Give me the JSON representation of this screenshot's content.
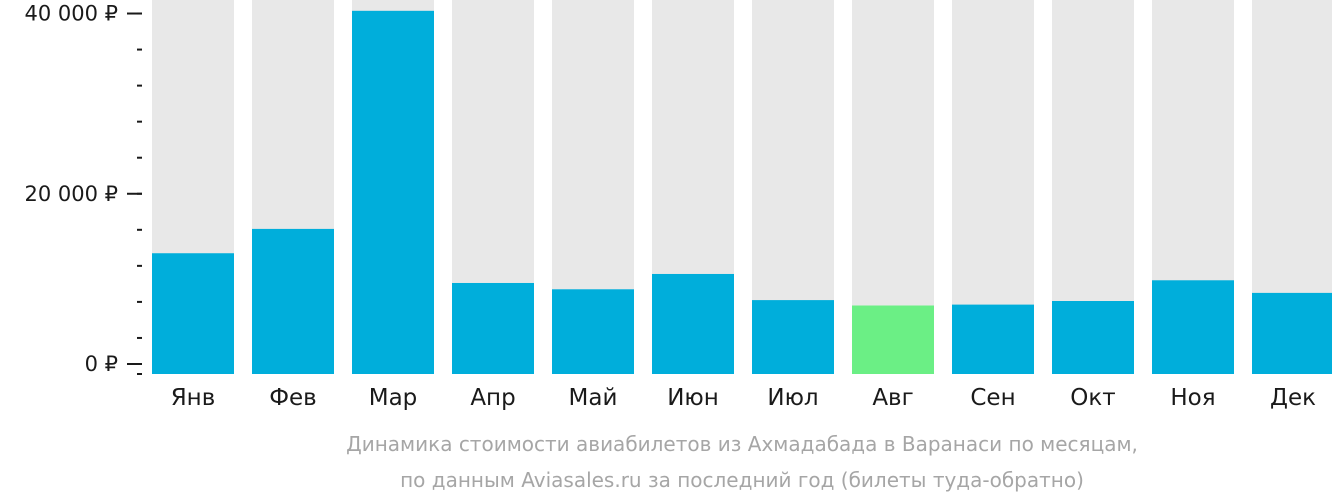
{
  "chart_data": {
    "type": "bar",
    "categories": [
      "Янв",
      "Фев",
      "Мар",
      "Апр",
      "Май",
      "Июн",
      "Июл",
      "Авг",
      "Сен",
      "Окт",
      "Ноя",
      "Дек"
    ],
    "values": [
      13400,
      16100,
      40300,
      10100,
      9400,
      11100,
      8200,
      7600,
      7700,
      8100,
      10400,
      9000
    ],
    "highlight_index": 7,
    "ylim": [
      0,
      41500
    ],
    "yticks": [
      {
        "value": 0,
        "label": "0 ₽"
      },
      {
        "value": 20000,
        "label": "20 000 ₽"
      },
      {
        "value": 40000,
        "label": "40 000 ₽"
      }
    ],
    "minor_tick_step": 4000,
    "title": "Динамика стоимости авиабилетов из Ахмадабада в Варанаси по месяцам,",
    "subtitle": "по данным Aviasales.ru за последний год (билеты туда-обратно)",
    "grid": false,
    "legend": "none"
  },
  "colors": {
    "bar": "#00aedb",
    "highlight": "#6bef85",
    "track": "#e8e8e8",
    "axis_text": "#1a1a1a",
    "caption": "#a6a6a6"
  }
}
